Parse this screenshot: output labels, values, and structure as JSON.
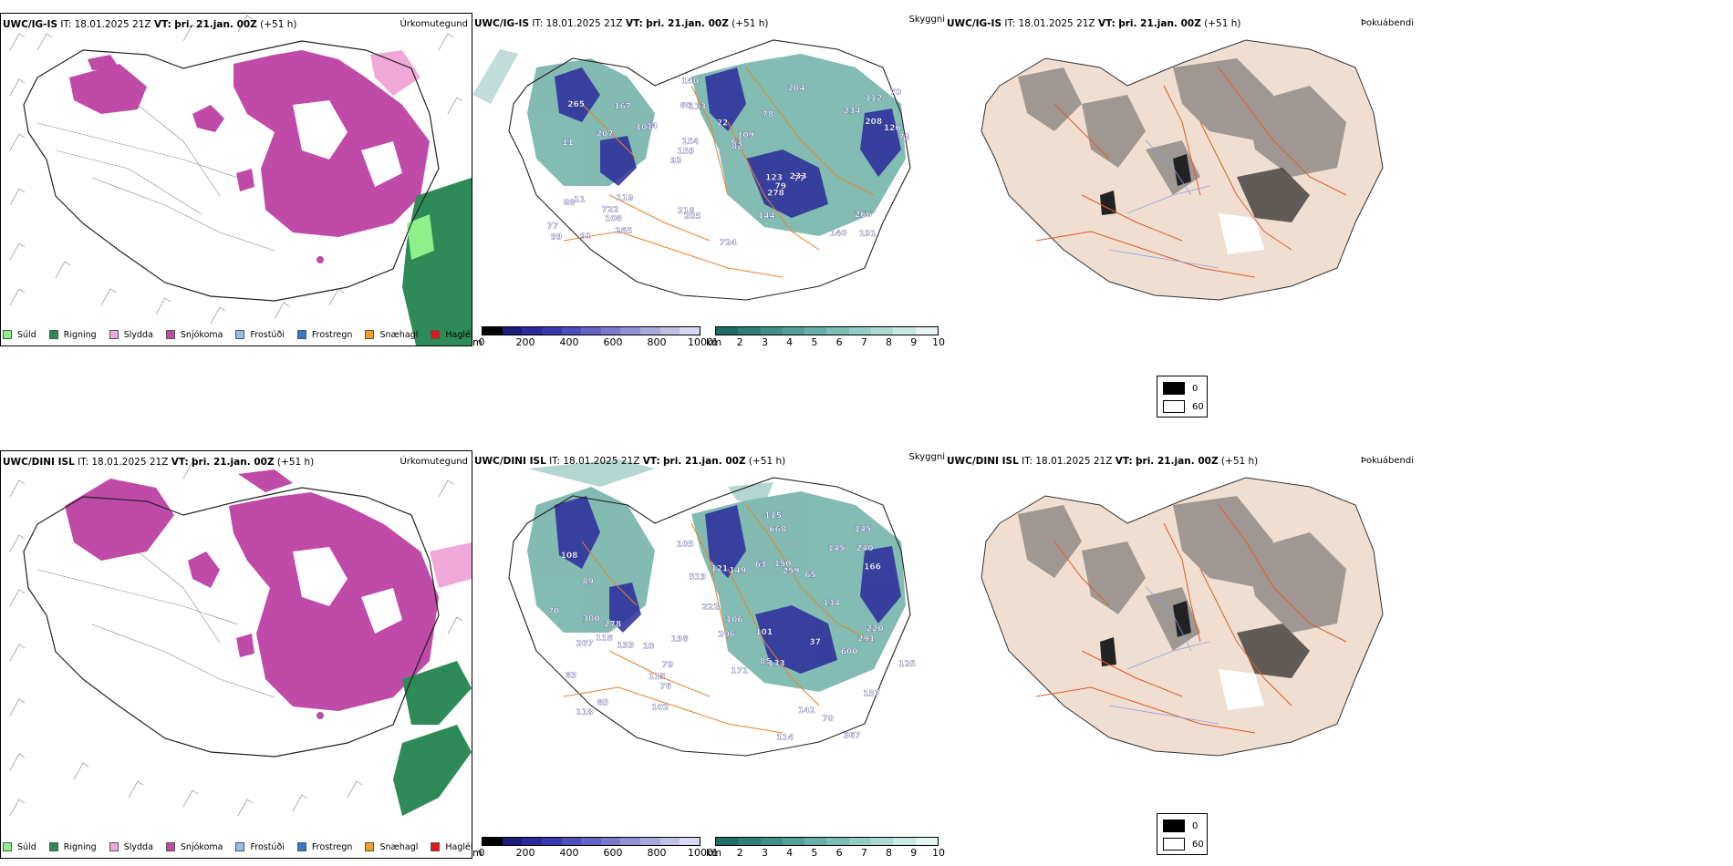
{
  "rows": [
    {
      "model": "UWC/IG-IS",
      "it_label": "IT:",
      "it_value": "18.01.2025 21Z",
      "vt_label": "VT:",
      "vt_value": "þri. 21.jan. 00Z",
      "lead": "(+51 h)",
      "precip_title": "Úrkomutegund",
      "cloud_title": "Skyggni",
      "fog_title": "Þokuábendi",
      "elevation_labels": [
        "131",
        "11",
        "112",
        "93",
        "78",
        "91",
        "60",
        "22",
        "11",
        "44",
        "77",
        "108",
        "113",
        "109",
        "77",
        "265",
        "140",
        "72",
        "123",
        "208",
        "159",
        "218",
        "154",
        "167",
        "204",
        "119",
        "140",
        "266",
        "233",
        "724",
        "101",
        "207",
        "278",
        "265",
        "126",
        "63",
        "99",
        "205",
        "82",
        "88",
        "234",
        "70",
        "79",
        "144",
        "722"
      ]
    },
    {
      "model": "UWC/DINI ISL",
      "it_label": "IT:",
      "it_value": "18.01.2025 21Z",
      "vt_label": "VT:",
      "vt_value": "þri. 21.jan. 00Z",
      "lead": "(+51 h)",
      "precip_title": "Úrkomutegund",
      "cloud_title": "Skyggni",
      "fog_title": "Þokuábendi",
      "elevation_labels": [
        "367",
        "118",
        "85",
        "108",
        "157",
        "89",
        "85",
        "10",
        "65",
        "121",
        "259",
        "70",
        "76",
        "105",
        "101",
        "83",
        "37",
        "106",
        "70",
        "118",
        "145",
        "149",
        "134",
        "125",
        "220",
        "300",
        "133",
        "206",
        "222",
        "240",
        "133",
        "207",
        "115",
        "150",
        "519",
        "600",
        "291",
        "141",
        "145",
        "114",
        "79",
        "171",
        "102",
        "115",
        "198",
        "278",
        "166",
        "668",
        "63"
      ]
    }
  ],
  "precip_legend": [
    {
      "label": "Súld",
      "color": "#8ef08a"
    },
    {
      "label": "Rigning",
      "color": "#2e8b57"
    },
    {
      "label": "Slydda",
      "color": "#f0a8d8"
    },
    {
      "label": "Snjókoma",
      "color": "#c04aa8"
    },
    {
      "label": "Frostúði",
      "color": "#8fbdf0"
    },
    {
      "label": "Frostregn",
      "color": "#3a78c8"
    },
    {
      "label": "Snæhagl",
      "color": "#f0a028"
    },
    {
      "label": "Haglél",
      "color": "#e01818"
    }
  ],
  "elevation_bar": {
    "unit": "m",
    "ticks": [
      "0",
      "200",
      "400",
      "600",
      "800",
      "1000"
    ],
    "colors": [
      "#000000",
      "#1c1c78",
      "#2a2a9a",
      "#3838b0",
      "#4f4fbc",
      "#6464c4",
      "#7a7acc",
      "#9090d4",
      "#a8a8dc",
      "#c0c0e6",
      "#d8d8f0"
    ]
  },
  "visibility_bar": {
    "unit": "km",
    "ticks": [
      "1",
      "2",
      "3",
      "4",
      "5",
      "6",
      "7",
      "8",
      "9",
      "10"
    ],
    "colors": [
      "#1e6e66",
      "#2f7f77",
      "#408f88",
      "#52a098",
      "#66afa8",
      "#7cbdb6",
      "#94ccc6",
      "#aedad5",
      "#c8e8e4",
      "#e4f4f2"
    ]
  },
  "fog_legend": [
    {
      "label": "0",
      "color": "#000000"
    },
    {
      "label": "60",
      "color": "#ffffff"
    }
  ]
}
